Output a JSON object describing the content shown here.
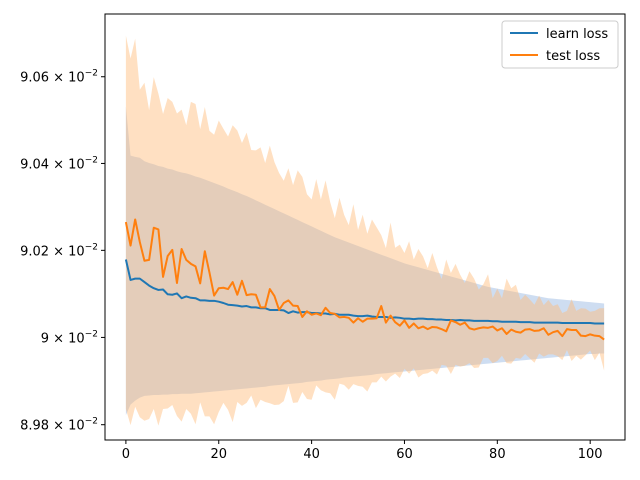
{
  "chart_data": {
    "type": "line",
    "title": "",
    "xlabel": "",
    "ylabel": "",
    "y_scale": "log",
    "xlim": [
      -4.5,
      107.5
    ],
    "ylim": [
      0.089765,
      0.090745
    ],
    "grid": false,
    "legend_position": "top-right",
    "x_ticks": [
      0,
      20,
      40,
      60,
      80,
      100
    ],
    "x_tick_labels": [
      "0",
      "20",
      "40",
      "60",
      "80",
      "100"
    ],
    "y_ticks": [
      0.0898,
      0.09,
      0.0902,
      0.0904,
      0.0906
    ],
    "y_tick_labels": [
      {
        "mantissa": "8.98",
        "sep": " × ",
        "base": "10",
        "exp": "−2"
      },
      {
        "mantissa": "9",
        "sep": " × ",
        "base": "10",
        "exp": "−2"
      },
      {
        "mantissa": "9.02",
        "sep": " × ",
        "base": "10",
        "exp": "−2"
      },
      {
        "mantissa": "9.04",
        "sep": " × ",
        "base": "10",
        "exp": "−2"
      },
      {
        "mantissa": "9.06",
        "sep": " × ",
        "base": "10",
        "exp": "−2"
      }
    ],
    "x": [
      0,
      1,
      2,
      3,
      4,
      5,
      6,
      7,
      8,
      9,
      10,
      11,
      12,
      13,
      14,
      15,
      16,
      17,
      18,
      19,
      20,
      21,
      22,
      23,
      24,
      25,
      26,
      27,
      28,
      29,
      30,
      31,
      32,
      33,
      34,
      35,
      36,
      37,
      38,
      39,
      40,
      41,
      42,
      43,
      44,
      45,
      46,
      47,
      48,
      49,
      50,
      51,
      52,
      53,
      54,
      55,
      56,
      57,
      58,
      59,
      60,
      61,
      62,
      63,
      64,
      65,
      66,
      67,
      68,
      69,
      70,
      71,
      72,
      73,
      74,
      75,
      76,
      77,
      78,
      79,
      80,
      81,
      82,
      83,
      84,
      85,
      86,
      87,
      88,
      89,
      90,
      91,
      92,
      93,
      94,
      95,
      96,
      97,
      98,
      99,
      100,
      101,
      102,
      103
    ],
    "series": [
      {
        "name": "learn loss",
        "color": "#1f77b4",
        "fill_color": "#aec7e8",
        "values": [
          0.090179,
          0.090132,
          0.090135,
          0.090135,
          0.090127,
          0.090119,
          0.090113,
          0.090109,
          0.09011,
          0.090099,
          0.090098,
          0.090101,
          0.09009,
          0.090094,
          0.090091,
          0.09009,
          0.090085,
          0.090085,
          0.090084,
          0.090084,
          0.090082,
          0.090079,
          0.090075,
          0.090074,
          0.090073,
          0.090071,
          0.090072,
          0.090069,
          0.090069,
          0.090067,
          0.090067,
          0.090063,
          0.090063,
          0.090063,
          0.090062,
          0.090056,
          0.09006,
          0.090057,
          0.090058,
          0.090058,
          0.090056,
          0.090056,
          0.090055,
          0.090055,
          0.090053,
          0.090054,
          0.090052,
          0.090052,
          0.090052,
          0.09005,
          0.090049,
          0.090049,
          0.09005,
          0.090048,
          0.090047,
          0.090047,
          0.090047,
          0.090045,
          0.090046,
          0.090045,
          0.090043,
          0.090043,
          0.090042,
          0.090043,
          0.090043,
          0.090042,
          0.090042,
          0.090041,
          0.090041,
          0.09004,
          0.09004,
          0.090039,
          0.09004,
          0.090039,
          0.090039,
          0.090038,
          0.090038,
          0.090038,
          0.090038,
          0.090037,
          0.090037,
          0.090036,
          0.090036,
          0.090036,
          0.090036,
          0.090035,
          0.090035,
          0.090035,
          0.090034,
          0.090034,
          0.090034,
          0.090034,
          0.090034,
          0.090034,
          0.090033,
          0.090033,
          0.090033,
          0.090033,
          0.090033,
          0.090033,
          0.090033,
          0.090032,
          0.090032,
          0.090032
        ],
        "upper": [
          0.090531,
          0.090418,
          0.090415,
          0.090413,
          0.090405,
          0.090401,
          0.090398,
          0.090394,
          0.090392,
          0.090388,
          0.090386,
          0.090382,
          0.090379,
          0.090377,
          0.090374,
          0.09037,
          0.090367,
          0.090363,
          0.090359,
          0.090355,
          0.090351,
          0.090347,
          0.090342,
          0.090338,
          0.090334,
          0.090329,
          0.090325,
          0.09032,
          0.090315,
          0.09031,
          0.090305,
          0.0903,
          0.090295,
          0.09029,
          0.090285,
          0.09028,
          0.090275,
          0.09027,
          0.090265,
          0.09026,
          0.090255,
          0.09025,
          0.090245,
          0.09024,
          0.090235,
          0.09023,
          0.090226,
          0.090222,
          0.090218,
          0.090214,
          0.09021,
          0.090206,
          0.090202,
          0.090198,
          0.090194,
          0.09019,
          0.090186,
          0.090182,
          0.090178,
          0.090174,
          0.09017,
          0.090167,
          0.090164,
          0.090161,
          0.090158,
          0.090155,
          0.090152,
          0.090149,
          0.090146,
          0.090143,
          0.09014,
          0.090137,
          0.090134,
          0.090131,
          0.090128,
          0.090125,
          0.090122,
          0.090119,
          0.090116,
          0.090114,
          0.090112,
          0.09011,
          0.090108,
          0.090106,
          0.090104,
          0.090102,
          0.0901,
          0.090098,
          0.090096,
          0.090094,
          0.090092,
          0.09009,
          0.090089,
          0.090088,
          0.090087,
          0.090086,
          0.090085,
          0.090084,
          0.090083,
          0.090082,
          0.090081,
          0.09008,
          0.090079,
          0.090078
        ],
        "lower": [
          0.089822,
          0.089846,
          0.089855,
          0.089862,
          0.089866,
          0.089867,
          0.089868,
          0.089868,
          0.089869,
          0.089869,
          0.08987,
          0.08987,
          0.089871,
          0.089871,
          0.089871,
          0.089872,
          0.089873,
          0.089874,
          0.089875,
          0.089876,
          0.089877,
          0.089878,
          0.089879,
          0.08988,
          0.089881,
          0.089882,
          0.089883,
          0.089884,
          0.089885,
          0.089886,
          0.089887,
          0.089889,
          0.08989,
          0.089891,
          0.089892,
          0.089893,
          0.089894,
          0.089895,
          0.089896,
          0.089898,
          0.089899,
          0.0899,
          0.089901,
          0.089903,
          0.089904,
          0.089905,
          0.089906,
          0.089908,
          0.089909,
          0.08991,
          0.089911,
          0.089912,
          0.089913,
          0.089914,
          0.089916,
          0.089917,
          0.089918,
          0.089919,
          0.08992,
          0.089921,
          0.089922,
          0.089923,
          0.089924,
          0.089925,
          0.089926,
          0.089927,
          0.089928,
          0.089929,
          0.08993,
          0.089931,
          0.089932,
          0.089933,
          0.089934,
          0.089935,
          0.089936,
          0.089937,
          0.089938,
          0.089939,
          0.08994,
          0.089941,
          0.089942,
          0.089943,
          0.089944,
          0.089945,
          0.089946,
          0.089947,
          0.089948,
          0.089949,
          0.08995,
          0.089951,
          0.089952,
          0.089953,
          0.089954,
          0.089955,
          0.089956,
          0.089957,
          0.089958,
          0.089959,
          0.08996,
          0.089961,
          0.089962,
          0.089962,
          0.089963,
          0.089963
        ]
      },
      {
        "name": "test loss",
        "color": "#ff7f0e",
        "fill_color": "#ffbb78",
        "values": [
          0.090265,
          0.090211,
          0.090271,
          0.090219,
          0.090176,
          0.090178,
          0.090252,
          0.090248,
          0.090139,
          0.090187,
          0.090201,
          0.090125,
          0.090203,
          0.090178,
          0.090169,
          0.090163,
          0.090124,
          0.090198,
          0.090149,
          0.090096,
          0.090113,
          0.090114,
          0.090111,
          0.090127,
          0.090098,
          0.09013,
          0.090097,
          0.090099,
          0.090098,
          0.090069,
          0.090069,
          0.090111,
          0.090095,
          0.090063,
          0.090079,
          0.090085,
          0.090073,
          0.090072,
          0.090047,
          0.09006,
          0.090052,
          0.090055,
          0.090051,
          0.090068,
          0.090056,
          0.090054,
          0.090046,
          0.090047,
          0.090045,
          0.090034,
          0.090044,
          0.090036,
          0.090043,
          0.090043,
          0.090044,
          0.090072,
          0.090034,
          0.09005,
          0.090035,
          0.090027,
          0.090039,
          0.090022,
          0.090032,
          0.090021,
          0.090025,
          0.090019,
          0.090024,
          0.090023,
          0.090019,
          0.090014,
          0.090039,
          0.090035,
          0.090029,
          0.090034,
          0.090021,
          0.090018,
          0.090021,
          0.090023,
          0.090022,
          0.090025,
          0.090016,
          0.090021,
          0.090008,
          0.090018,
          0.090013,
          0.090011,
          0.090018,
          0.090019,
          0.090015,
          0.090016,
          0.090021,
          0.090006,
          0.090012,
          0.090015,
          0.090003,
          0.090019,
          0.090017,
          0.090017,
          0.090004,
          0.090003,
          0.090007,
          0.090004,
          0.090003,
          0.089995
        ],
        "upper": [
          0.090695,
          0.090642,
          0.090688,
          0.09057,
          0.090586,
          0.090523,
          0.090599,
          0.090561,
          0.090514,
          0.090551,
          0.090542,
          0.090515,
          0.090524,
          0.090488,
          0.090542,
          0.090537,
          0.090479,
          0.09053,
          0.090475,
          0.090466,
          0.090499,
          0.09048,
          0.090462,
          0.090488,
          0.090476,
          0.090447,
          0.090471,
          0.090431,
          0.09043,
          0.090437,
          0.090401,
          0.090441,
          0.090403,
          0.090378,
          0.09036,
          0.090389,
          0.09035,
          0.090384,
          0.090369,
          0.090329,
          0.090317,
          0.090364,
          0.090317,
          0.090361,
          0.090311,
          0.090274,
          0.090321,
          0.090282,
          0.090258,
          0.090306,
          0.090247,
          0.090282,
          0.090238,
          0.090271,
          0.090253,
          0.090235,
          0.090205,
          0.090264,
          0.090206,
          0.090213,
          0.090194,
          0.090221,
          0.090179,
          0.090203,
          0.090186,
          0.090159,
          0.090194,
          0.090161,
          0.090134,
          0.090179,
          0.090148,
          0.090169,
          0.090144,
          0.090125,
          0.090152,
          0.090135,
          0.09011,
          0.090122,
          0.090145,
          0.09009,
          0.090112,
          0.09009,
          0.090135,
          0.090113,
          0.090121,
          0.090086,
          0.090098,
          0.090087,
          0.090075,
          0.090096,
          0.090074,
          0.090086,
          0.090072,
          0.090076,
          0.090056,
          0.090061,
          0.090088,
          0.090061,
          0.090067,
          0.090066,
          0.090059,
          0.090061,
          0.090067,
          0.090067
        ],
        "lower": [
          0.089836,
          0.089799,
          0.089841,
          0.089817,
          0.089809,
          0.089813,
          0.089836,
          0.089798,
          0.089836,
          0.089837,
          0.089845,
          0.08982,
          0.089807,
          0.089836,
          0.089825,
          0.089801,
          0.089851,
          0.089819,
          0.089819,
          0.089801,
          0.089829,
          0.08985,
          0.089834,
          0.089806,
          0.089852,
          0.089843,
          0.08985,
          0.089867,
          0.089838,
          0.089857,
          0.089852,
          0.089849,
          0.089845,
          0.089846,
          0.089854,
          0.089889,
          0.08985,
          0.089851,
          0.089875,
          0.089859,
          0.089857,
          0.08989,
          0.089879,
          0.089874,
          0.089872,
          0.089857,
          0.089894,
          0.089891,
          0.08988,
          0.089893,
          0.089889,
          0.089887,
          0.089876,
          0.089897,
          0.089897,
          0.08991,
          0.089899,
          0.08991,
          0.089917,
          0.089907,
          0.089928,
          0.089917,
          0.089929,
          0.089908,
          0.089916,
          0.089918,
          0.089924,
          0.089915,
          0.089937,
          0.089935,
          0.089916,
          0.089937,
          0.089933,
          0.089935,
          0.089941,
          0.08993,
          0.089931,
          0.089953,
          0.089953,
          0.089941,
          0.089946,
          0.089958,
          0.089941,
          0.08994,
          0.089953,
          0.089951,
          0.089962,
          0.089952,
          0.089942,
          0.089963,
          0.089956,
          0.089961,
          0.089961,
          0.089957,
          0.089948,
          0.089971,
          0.089946,
          0.089958,
          0.089949,
          0.089959,
          0.08997,
          0.089948,
          0.089965,
          0.089924
        ]
      }
    ]
  }
}
